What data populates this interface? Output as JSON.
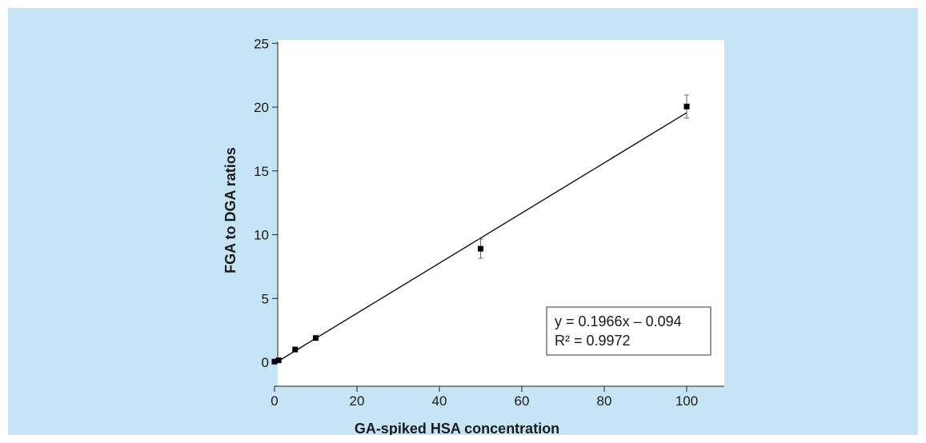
{
  "chart_data": {
    "type": "scatter",
    "title": "",
    "xlabel": "GA-spiked HSA concentration",
    "ylabel": "FGA to DGA ratios",
    "xlim": [
      -5,
      110
    ],
    "ylim": [
      -2,
      25
    ],
    "xticks": [
      0,
      20,
      40,
      60,
      80,
      100
    ],
    "yticks": [
      0,
      5,
      10,
      15,
      20,
      25
    ],
    "grid": false,
    "series": [
      {
        "x": [
          0,
          1,
          5,
          10,
          50,
          100
        ],
        "y": [
          0.05,
          0.15,
          1.0,
          1.9,
          8.9,
          20.05
        ],
        "error": [
          0,
          0,
          0,
          0,
          0.75,
          0.9
        ]
      }
    ],
    "trendline": {
      "slope": 0.1966,
      "intercept": -0.094,
      "x_range": [
        0,
        100
      ]
    },
    "annotations": {
      "equation": "y = 0.1966x – 0.094",
      "r_squared": "R² = 0.9972"
    }
  }
}
